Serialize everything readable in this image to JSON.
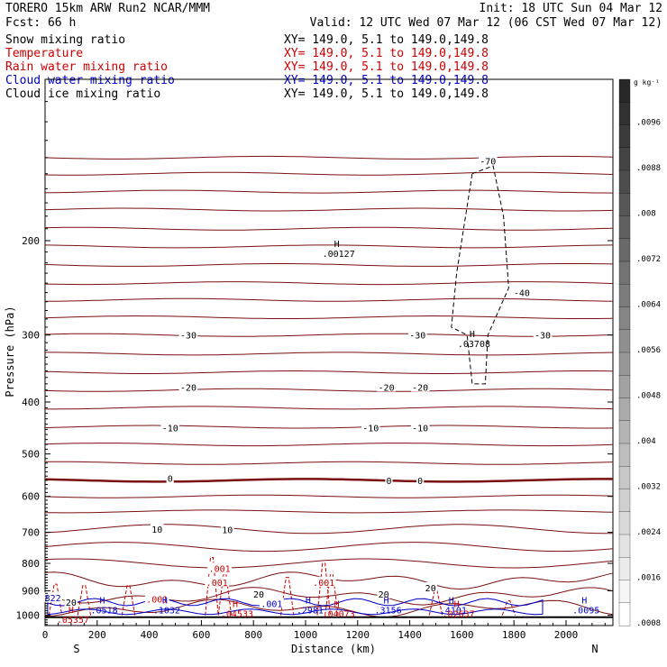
{
  "header": {
    "model": "TORERO  15km ARW   Run2    NCAR/MMM",
    "init": "Init: 18 UTC Sun 04 Mar 12",
    "fcst": "Fcst:   66 h",
    "valid": "Valid: 12 UTC Wed 07 Mar 12 (06 CST Wed 07 Mar 12)"
  },
  "fields": [
    {
      "name": "Snow mixing ratio",
      "xy": "XY= 149.0,  5.1 to 149.0,149.8",
      "color": "#000000"
    },
    {
      "name": "Temperature",
      "xy": "XY= 149.0,  5.1 to 149.0,149.8",
      "color": "#cc0000"
    },
    {
      "name": "Rain water mixing ratio",
      "xy": "XY= 149.0,  5.1 to 149.0,149.8",
      "color": "#cc0000"
    },
    {
      "name": "Cloud water mixing ratio",
      "xy": "XY= 149.0,  5.1 to 149.0,149.8",
      "color": "#0000cc"
    },
    {
      "name": "Cloud ice mixing ratio",
      "xy": "XY= 149.0,  5.1 to 149.0,149.8",
      "color": "#000000"
    }
  ],
  "colorbar": {
    "unit": "g kg⁻¹",
    "labels": [
      ".0096",
      ".0088",
      ".008",
      ".0072",
      ".0064",
      ".0056",
      ".0048",
      ".004",
      ".0032",
      ".0024",
      ".0016",
      ".0008"
    ]
  },
  "chart_data": {
    "type": "contour cross-section",
    "xlabel": "Distance (km)",
    "ylabel": "Pressure (hPa)",
    "x_ticks": [
      0,
      200,
      400,
      600,
      800,
      1000,
      1200,
      1400,
      1600,
      1800,
      2000
    ],
    "y_ticks": [
      200,
      300,
      400,
      500,
      600,
      700,
      800,
      900,
      1000
    ],
    "xlim": [
      0,
      2180
    ],
    "ylim": [
      1045,
      100
    ],
    "y_scale": "log",
    "ends": {
      "left": "S",
      "right": "N"
    },
    "isotherms": [
      -70,
      -60,
      -50,
      -45,
      -40,
      -35,
      -30,
      -25,
      -20,
      -15,
      -10,
      -5,
      0,
      5,
      10,
      15,
      20
    ],
    "contour_labels": [
      {
        "text": "-30",
        "x": 550,
        "p": 300,
        "color": "#000000"
      },
      {
        "text": "-30",
        "x": 1430,
        "p": 300,
        "color": "#000000"
      },
      {
        "text": "-30",
        "x": 1910,
        "p": 300,
        "color": "#000000"
      },
      {
        "text": "-40",
        "x": 1830,
        "p": 250,
        "color": "#000000"
      },
      {
        "text": "-70",
        "x": 1700,
        "p": 142,
        "color": "#000000"
      },
      {
        "text": "-20",
        "x": 550,
        "p": 375,
        "color": "#000000"
      },
      {
        "text": "-20",
        "x": 1310,
        "p": 375,
        "color": "#000000"
      },
      {
        "text": "-20",
        "x": 1440,
        "p": 375,
        "color": "#000000"
      },
      {
        "text": "-10",
        "x": 480,
        "p": 447,
        "color": "#000000"
      },
      {
        "text": "-10",
        "x": 1250,
        "p": 447,
        "color": "#000000"
      },
      {
        "text": "-10",
        "x": 1440,
        "p": 447,
        "color": "#000000"
      },
      {
        "text": "0",
        "x": 480,
        "p": 555,
        "color": "#000000"
      },
      {
        "text": "0",
        "x": 1320,
        "p": 560,
        "color": "#000000"
      },
      {
        "text": "0",
        "x": 1440,
        "p": 560,
        "color": "#000000"
      },
      {
        "text": "10",
        "x": 430,
        "p": 690,
        "color": "#000000"
      },
      {
        "text": "10",
        "x": 700,
        "p": 692,
        "color": "#000000"
      },
      {
        "text": "20",
        "x": 820,
        "p": 912,
        "color": "#000000"
      },
      {
        "text": "20",
        "x": 1300,
        "p": 912,
        "color": "#000000"
      },
      {
        "text": "20",
        "x": 1480,
        "p": 888,
        "color": "#000000"
      },
      {
        "text": "20",
        "x": 100,
        "p": 945,
        "color": "#000000"
      },
      {
        "text": ".001",
        "x": 670,
        "p": 817,
        "color": "#cc0000"
      },
      {
        "text": ".001",
        "x": 660,
        "p": 867,
        "color": "#cc0000"
      },
      {
        "text": ".001",
        "x": 1070,
        "p": 867,
        "color": "#cc0000"
      },
      {
        "text": ".001",
        "x": 430,
        "p": 932,
        "color": "#cc0000"
      },
      {
        "text": ".001",
        "x": 870,
        "p": 950,
        "color": "#0000cc"
      },
      {
        "text": "822",
        "x": 30,
        "p": 927,
        "color": "#0000cc"
      }
    ],
    "extrema": [
      {
        "mark": "H",
        "value": ".00127",
        "x": 1120,
        "p": 207,
        "color": "#000000"
      },
      {
        "mark": "H",
        "value": ".03708",
        "x": 1640,
        "p": 305,
        "color": "#000000"
      },
      {
        "mark": "H",
        "value": ".0518",
        "x": 220,
        "p": 957,
        "color": "#0000cc"
      },
      {
        "mark": "H",
        "value": ".1032",
        "x": 460,
        "p": 957,
        "color": "#0000cc"
      },
      {
        "mark": "H",
        "value": ".2981",
        "x": 1010,
        "p": 957,
        "color": "#0000cc"
      },
      {
        "mark": "H",
        "value": ".3156",
        "x": 1310,
        "p": 957,
        "color": "#0000cc"
      },
      {
        "mark": "H",
        "value": ".4101",
        "x": 1560,
        "p": 957,
        "color": "#0000cc"
      },
      {
        "mark": "H",
        "value": ".0095",
        "x": 2070,
        "p": 957,
        "color": "#0000cc"
      },
      {
        "mark": "H",
        "value": ".04533",
        "x": 730,
        "p": 973,
        "color": "#cc0000"
      },
      {
        "mark": "H",
        "value": ".04073",
        "x": 1120,
        "p": 973,
        "color": "#cc0000"
      },
      {
        "mark": "H",
        "value": ".02637",
        "x": 1580,
        "p": 973,
        "color": "#cc0000"
      },
      {
        "mark": "H",
        "value": ".05357",
        "x": 100,
        "p": 997,
        "color": "#cc0000"
      }
    ]
  }
}
